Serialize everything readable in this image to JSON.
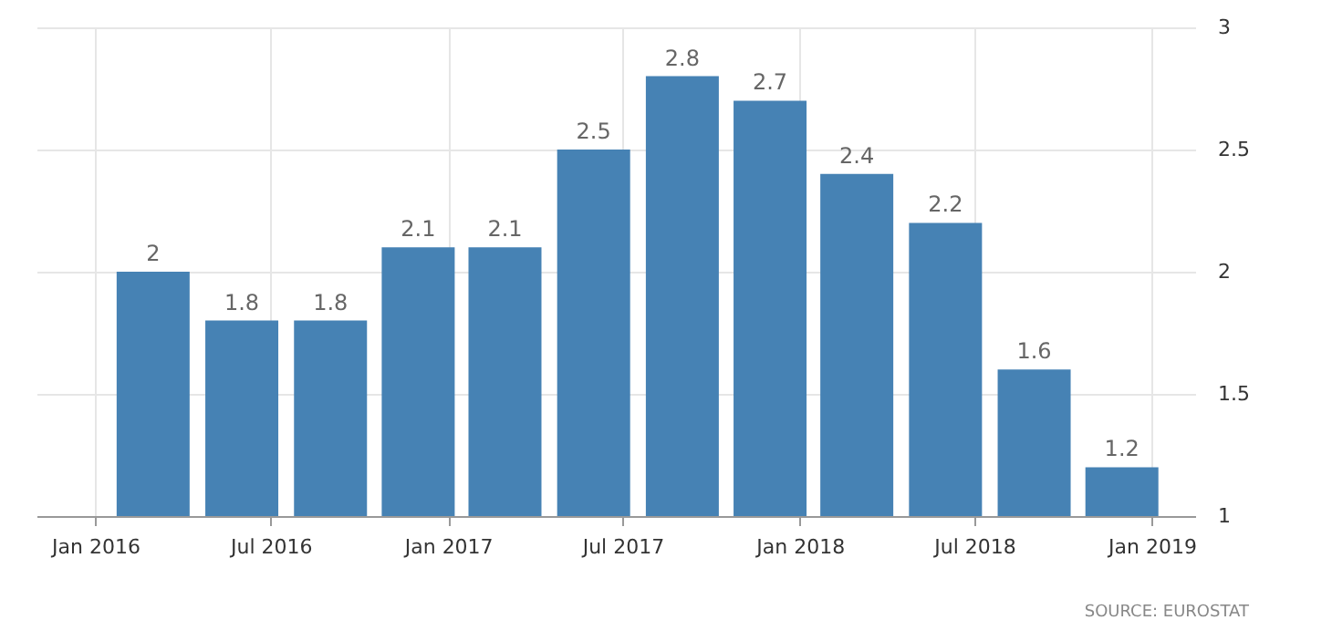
{
  "chart_data": {
    "type": "bar",
    "x": [
      "2016-03",
      "2016-06",
      "2016-09",
      "2016-12",
      "2017-03",
      "2017-06",
      "2017-09",
      "2017-12",
      "2018-03",
      "2018-06",
      "2018-09",
      "2018-12"
    ],
    "values": [
      2,
      1.8,
      1.8,
      2.1,
      2.1,
      2.5,
      2.8,
      2.7,
      2.4,
      2.2,
      1.6,
      1.2
    ],
    "color": "#4682b4",
    "data_labels": true,
    "xlim": [
      "2015-11-01",
      "2019-02-15"
    ],
    "xticks": [
      {
        "value": "2016-01",
        "label": "Jan 2016"
      },
      {
        "value": "2016-07",
        "label": "Jul 2016"
      },
      {
        "value": "2017-01",
        "label": "Jan 2017"
      },
      {
        "value": "2017-07",
        "label": "Jul 2017"
      },
      {
        "value": "2018-01",
        "label": "Jan 2018"
      },
      {
        "value": "2018-07",
        "label": "Jul 2018"
      },
      {
        "value": "2019-01",
        "label": "Jan 2019"
      }
    ],
    "ylim": [
      1,
      3
    ],
    "yticks": [
      1,
      1.5,
      2,
      2.5,
      3
    ],
    "grid": true,
    "annotations": [
      "SOURCE: EUROSTAT"
    ]
  }
}
